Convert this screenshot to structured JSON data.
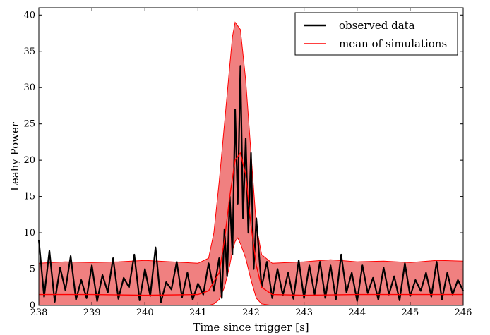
{
  "chart_data": {
    "type": "line",
    "xlabel": "Time since trigger [s]",
    "ylabel": "Leahy Power",
    "xlim": [
      238,
      246
    ],
    "ylim": [
      0,
      41
    ],
    "x_ticks": [
      238,
      239,
      240,
      241,
      242,
      243,
      244,
      245,
      246
    ],
    "y_ticks": [
      0,
      5,
      10,
      15,
      20,
      25,
      30,
      35,
      40
    ],
    "grid": false,
    "legend_position": "top-right",
    "colors": {
      "observed": "#000000",
      "simulations": "#ff0000",
      "band_fill": "#f08080"
    },
    "series": [
      {
        "name": "observed data",
        "color": "#000000",
        "x": [
          238.0,
          238.1,
          238.2,
          238.3,
          238.4,
          238.5,
          238.6,
          238.7,
          238.8,
          238.9,
          239.0,
          239.1,
          239.2,
          239.3,
          239.4,
          239.5,
          239.6,
          239.7,
          239.8,
          239.9,
          240.0,
          240.1,
          240.2,
          240.3,
          240.4,
          240.5,
          240.6,
          240.7,
          240.8,
          240.9,
          241.0,
          241.1,
          241.2,
          241.3,
          241.4,
          241.45,
          241.5,
          241.55,
          241.6,
          241.65,
          241.7,
          241.75,
          241.8,
          241.85,
          241.9,
          241.95,
          242.0,
          242.05,
          242.1,
          242.2,
          242.3,
          242.4,
          242.5,
          242.6,
          242.7,
          242.8,
          242.9,
          243.0,
          243.1,
          243.2,
          243.3,
          243.4,
          243.5,
          243.6,
          243.7,
          243.8,
          243.9,
          244.0,
          244.1,
          244.2,
          244.3,
          244.4,
          244.5,
          244.6,
          244.7,
          244.8,
          244.9,
          245.0,
          245.1,
          245.2,
          245.3,
          245.4,
          245.5,
          245.6,
          245.7,
          245.8,
          245.9,
          246.0
        ],
        "y": [
          9.0,
          1.2,
          7.5,
          0.5,
          5.2,
          2.1,
          6.8,
          0.8,
          3.5,
          1.0,
          5.5,
          0.6,
          4.2,
          1.8,
          6.5,
          0.9,
          3.8,
          2.5,
          7.0,
          0.7,
          5.0,
          1.3,
          8.0,
          0.4,
          3.2,
          2.2,
          6.0,
          1.1,
          4.5,
          0.8,
          3.0,
          1.5,
          5.8,
          2.0,
          6.5,
          1.0,
          10.5,
          4.0,
          15.0,
          7.0,
          27.0,
          14.0,
          33.0,
          12.0,
          23.0,
          10.0,
          21.0,
          5.0,
          12.0,
          2.5,
          6.0,
          1.0,
          5.0,
          1.4,
          4.5,
          0.9,
          6.2,
          1.0,
          5.5,
          1.5,
          6.0,
          1.0,
          5.5,
          0.8,
          7.0,
          1.8,
          4.5,
          0.6,
          5.5,
          1.7,
          3.8,
          0.8,
          5.2,
          1.5,
          4.0,
          0.7,
          5.8,
          1.3,
          3.5,
          2.0,
          4.5,
          1.2,
          6.0,
          0.8,
          4.5,
          1.5,
          3.5,
          2.0
        ]
      },
      {
        "name": "mean of simulations",
        "color": "#ff0000",
        "x": [
          238.0,
          239.0,
          240.0,
          241.0,
          241.2,
          241.4,
          241.5,
          241.6,
          241.7,
          241.8,
          241.9,
          242.0,
          242.1,
          242.2,
          242.4,
          243.0,
          244.0,
          245.0,
          246.0
        ],
        "y": [
          1.5,
          1.5,
          1.4,
          1.5,
          2.0,
          4.5,
          9.0,
          15.0,
          20.0,
          21.0,
          18.0,
          11.0,
          5.5,
          2.5,
          1.5,
          1.4,
          1.5,
          1.5,
          1.5
        ]
      }
    ],
    "band": {
      "x": [
        238.0,
        238.5,
        239.0,
        239.5,
        240.0,
        240.5,
        241.0,
        241.2,
        241.3,
        241.4,
        241.5,
        241.6,
        241.65,
        241.7,
        241.75,
        241.8,
        241.9,
        242.0,
        242.1,
        242.2,
        242.4,
        243.0,
        243.5,
        244.0,
        244.5,
        245.0,
        245.5,
        246.0
      ],
      "upper": [
        5.8,
        6.0,
        5.9,
        6.0,
        6.2,
        6.0,
        5.8,
        6.5,
        10.0,
        17.0,
        25.0,
        33.0,
        37.0,
        39.0,
        38.5,
        38.0,
        31.0,
        21.0,
        11.0,
        7.0,
        5.8,
        6.0,
        6.3,
        6.0,
        6.1,
        5.9,
        6.2,
        6.1
      ],
      "lower": [
        0.0,
        0.0,
        0.0,
        0.0,
        0.0,
        0.0,
        0.0,
        0.0,
        0.2,
        0.8,
        2.5,
        5.5,
        7.5,
        8.8,
        9.3,
        8.5,
        6.5,
        3.5,
        1.0,
        0.2,
        0.0,
        0.0,
        0.0,
        0.0,
        0.0,
        0.0,
        0.0,
        0.0
      ]
    }
  }
}
